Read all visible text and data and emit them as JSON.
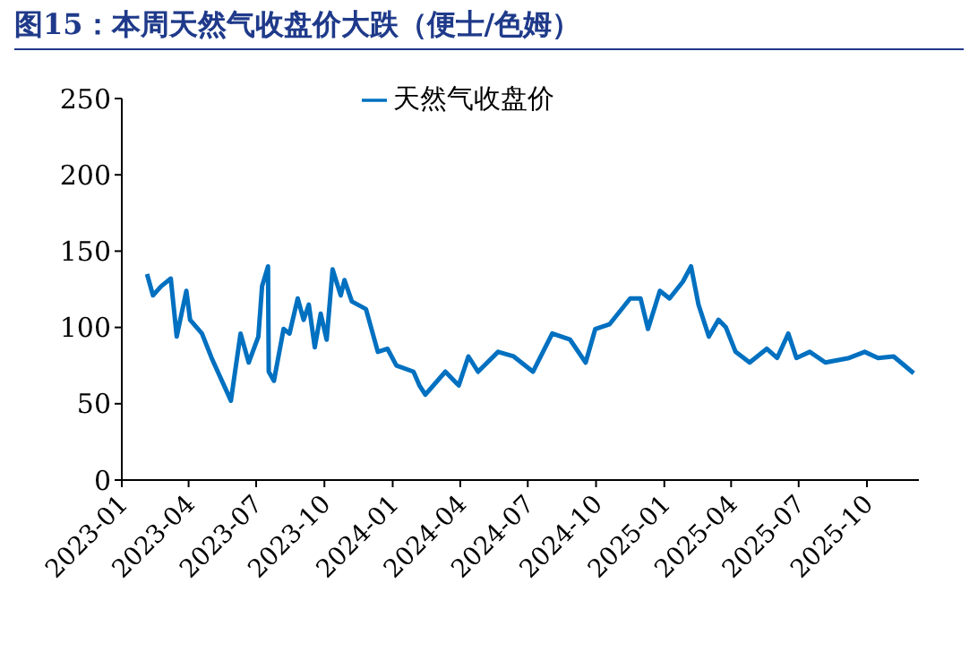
{
  "chart_data": {
    "type": "line",
    "title": "图15：本周天然气收盘价大跌（便士/色姆）",
    "x": [
      "2023-02-04",
      "2023-02-12",
      "2023-02-23",
      "2023-03-08",
      "2023-03-16",
      "2023-03-29",
      "2023-04-03",
      "2023-04-19",
      "2023-05-02",
      "2023-05-28",
      "2023-06-10",
      "2023-06-21",
      "2023-07-04",
      "2023-07-09",
      "2023-07-17",
      "2023-07-18",
      "2023-07-25",
      "2023-08-07",
      "2023-08-15",
      "2023-08-26",
      "2023-09-03",
      "2023-09-10",
      "2023-09-18",
      "2023-09-26",
      "2023-10-04",
      "2023-10-12",
      "2023-10-23",
      "2023-10-28",
      "2023-11-07",
      "2023-11-26",
      "2023-12-12",
      "2023-12-25",
      "2024-01-06",
      "2024-01-29",
      "2024-02-06",
      "2024-02-14",
      "2024-03-12",
      "2024-03-30",
      "2024-04-12",
      "2024-04-25",
      "2024-05-22",
      "2024-06-12",
      "2024-07-08",
      "2024-08-03",
      "2024-08-27",
      "2024-09-17",
      "2024-09-30",
      "2024-10-19",
      "2024-11-16",
      "2024-11-30",
      "2024-12-10",
      "2024-12-26",
      "2025-01-08",
      "2025-01-26",
      "2025-02-06",
      "2025-02-16",
      "2025-03-02",
      "2025-03-15",
      "2025-03-25",
      "2025-04-07",
      "2025-04-26",
      "2025-05-19",
      "2025-06-02",
      "2025-06-17",
      "2025-06-28",
      "2025-07-16",
      "2025-08-06",
      "2025-09-07",
      "2025-09-28",
      "2025-10-16",
      "2025-11-06",
      "2025-12-03"
    ],
    "series": [
      {
        "name": "天然气收盘价",
        "color": "#0070c0",
        "values": [
          135,
          121,
          127,
          132,
          94,
          124,
          105,
          96,
          80,
          52,
          96,
          77,
          94,
          127,
          140,
          71,
          65,
          99,
          96,
          119,
          105,
          115,
          87,
          109,
          92,
          138,
          121,
          131,
          117,
          112,
          84,
          86,
          75,
          71,
          62,
          56,
          71,
          62,
          81,
          71,
          84,
          81,
          71,
          96,
          92,
          77,
          99,
          102,
          119,
          119,
          99,
          124,
          119,
          130,
          140,
          115,
          94,
          105,
          100,
          84,
          77,
          86,
          80,
          96,
          80,
          84,
          77,
          80,
          84,
          80,
          81,
          70
        ]
      }
    ],
    "xlim": [
      "2023-01-01",
      "2025-12-10"
    ],
    "xticks": [
      "2023-01",
      "2023-04",
      "2023-07",
      "2023-10",
      "2024-01",
      "2024-04",
      "2024-07",
      "2024-10",
      "2025-01",
      "2025-04",
      "2025-07",
      "2025-10"
    ],
    "ylim": [
      0,
      250
    ],
    "yticks": [
      0,
      50,
      100,
      150,
      200,
      250
    ],
    "legend": "top",
    "marker": "none",
    "line_style": "solid"
  }
}
